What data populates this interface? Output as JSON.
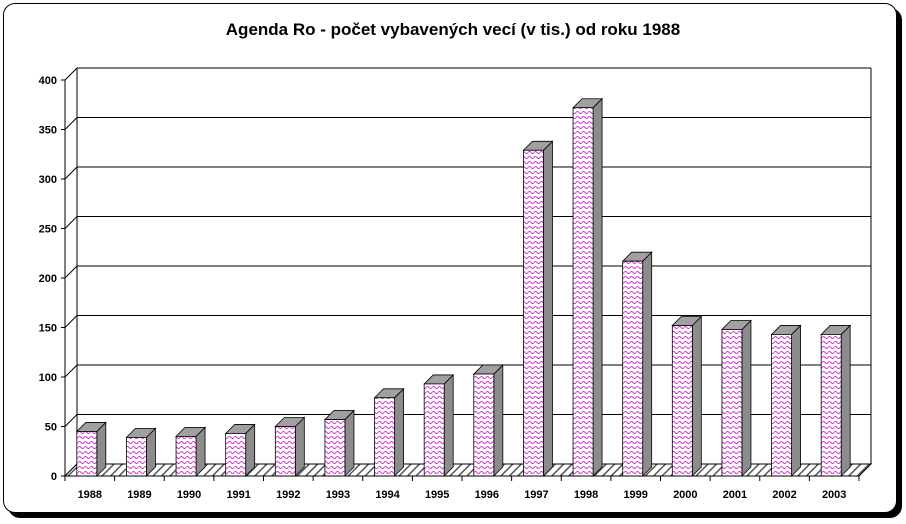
{
  "chart_data": {
    "type": "bar",
    "title": "Agenda Ro - počet vybavených vecí (v tis.) od roku 1988",
    "categories": [
      "1988",
      "1989",
      "1990",
      "1991",
      "1992",
      "1993",
      "1994",
      "1995",
      "1996",
      "1997",
      "1998",
      "1999",
      "2000",
      "2001",
      "2002",
      "2003"
    ],
    "series": [
      {
        "values": [
          45,
          39,
          40,
          43,
          50,
          57,
          79,
          93,
          103,
          329,
          372,
          217,
          152,
          148,
          143,
          143
        ]
      }
    ],
    "xlabel": "",
    "ylabel": "",
    "ylim": [
      0,
      400
    ],
    "yticks": [
      0,
      50,
      100,
      150,
      200,
      250,
      300,
      350,
      400
    ],
    "grid": true,
    "legend": "none",
    "style": "3d-bar",
    "colors": {
      "bar_fill": "#ffffff",
      "bar_pattern": "#cc00cc",
      "bar_side": "#8c8c8c",
      "bar_top": "#a0a0a0",
      "floor_hatch": "#555555"
    }
  }
}
